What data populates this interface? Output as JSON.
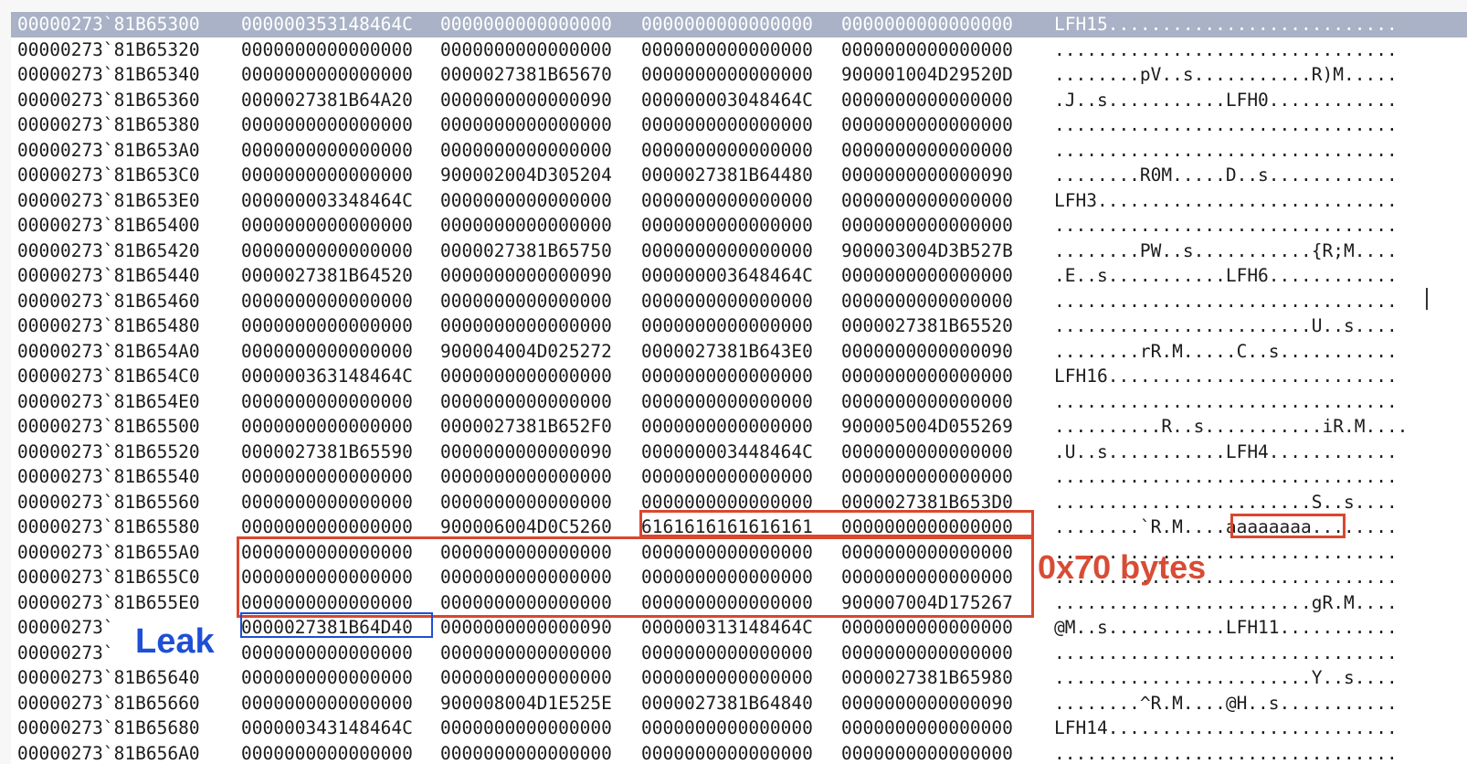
{
  "memory_view": {
    "rows": [
      {
        "addr": "00000273`81B65300",
        "q": [
          "000000353148464C",
          "0000000000000000",
          "0000000000000000",
          "0000000000000000"
        ],
        "ascii": "LFH15...........................",
        "selected": true
      },
      {
        "addr": "00000273`81B65320",
        "q": [
          "0000000000000000",
          "0000000000000000",
          "0000000000000000",
          "0000000000000000"
        ],
        "ascii": "................................"
      },
      {
        "addr": "00000273`81B65340",
        "q": [
          "0000000000000000",
          "0000027381B65670",
          "0000000000000000",
          "900001004D29520D"
        ],
        "ascii": "........pV..s...........R)M....."
      },
      {
        "addr": "00000273`81B65360",
        "q": [
          "0000027381B64A20",
          "0000000000000090",
          "000000003048464C",
          "0000000000000000"
        ],
        "ascii": ".J..s...........LFH0............"
      },
      {
        "addr": "00000273`81B65380",
        "q": [
          "0000000000000000",
          "0000000000000000",
          "0000000000000000",
          "0000000000000000"
        ],
        "ascii": "................................"
      },
      {
        "addr": "00000273`81B653A0",
        "q": [
          "0000000000000000",
          "0000000000000000",
          "0000000000000000",
          "0000000000000000"
        ],
        "ascii": "................................"
      },
      {
        "addr": "00000273`81B653C0",
        "q": [
          "0000000000000000",
          "900002004D305204",
          "0000027381B64480",
          "0000000000000090"
        ],
        "ascii": "........R0M.....D..s............"
      },
      {
        "addr": "00000273`81B653E0",
        "q": [
          "000000003348464C",
          "0000000000000000",
          "0000000000000000",
          "0000000000000000"
        ],
        "ascii": "LFH3............................"
      },
      {
        "addr": "00000273`81B65400",
        "q": [
          "0000000000000000",
          "0000000000000000",
          "0000000000000000",
          "0000000000000000"
        ],
        "ascii": "................................"
      },
      {
        "addr": "00000273`81B65420",
        "q": [
          "0000000000000000",
          "0000027381B65750",
          "0000000000000000",
          "900003004D3B527B"
        ],
        "ascii": "........PW..s...........{R;M...."
      },
      {
        "addr": "00000273`81B65440",
        "q": [
          "0000027381B64520",
          "0000000000000090",
          "000000003648464C",
          "0000000000000000"
        ],
        "ascii": ".E..s...........LFH6............"
      },
      {
        "addr": "00000273`81B65460",
        "q": [
          "0000000000000000",
          "0000000000000000",
          "0000000000000000",
          "0000000000000000"
        ],
        "ascii": "................................"
      },
      {
        "addr": "00000273`81B65480",
        "q": [
          "0000000000000000",
          "0000000000000000",
          "0000000000000000",
          "0000027381B65520"
        ],
        "ascii": "........................U..s...."
      },
      {
        "addr": "00000273`81B654A0",
        "q": [
          "0000000000000000",
          "900004004D025272",
          "0000027381B643E0",
          "0000000000000090"
        ],
        "ascii": "........rR.M.....C..s..........."
      },
      {
        "addr": "00000273`81B654C0",
        "q": [
          "000000363148464C",
          "0000000000000000",
          "0000000000000000",
          "0000000000000000"
        ],
        "ascii": "LFH16..........................."
      },
      {
        "addr": "00000273`81B654E0",
        "q": [
          "0000000000000000",
          "0000000000000000",
          "0000000000000000",
          "0000000000000000"
        ],
        "ascii": "................................"
      },
      {
        "addr": "00000273`81B65500",
        "q": [
          "0000000000000000",
          "0000027381B652F0",
          "0000000000000000",
          "900005004D055269"
        ],
        "ascii": "..........R..s...........iR.M...."
      },
      {
        "addr": "00000273`81B65520",
        "q": [
          "0000027381B65590",
          "0000000000000090",
          "000000003448464C",
          "0000000000000000"
        ],
        "ascii": ".U..s...........LFH4............"
      },
      {
        "addr": "00000273`81B65540",
        "q": [
          "0000000000000000",
          "0000000000000000",
          "0000000000000000",
          "0000000000000000"
        ],
        "ascii": "................................"
      },
      {
        "addr": "00000273`81B65560",
        "q": [
          "0000000000000000",
          "0000000000000000",
          "0000000000000000",
          "0000027381B653D0"
        ],
        "ascii": "........................S..s...."
      },
      {
        "addr": "00000273`81B65580",
        "q": [
          "0000000000000000",
          "900006004D0C5260",
          "6161616161616161",
          "0000000000000000"
        ],
        "ascii": "........`R.M....aaaaaaaa........"
      },
      {
        "addr": "00000273`81B655A0",
        "q": [
          "0000000000000000",
          "0000000000000000",
          "0000000000000000",
          "0000000000000000"
        ],
        "ascii": "................................"
      },
      {
        "addr": "00000273`81B655C0",
        "q": [
          "0000000000000000",
          "0000000000000000",
          "0000000000000000",
          "0000000000000000"
        ],
        "ascii": "................................"
      },
      {
        "addr": "00000273`81B655E0",
        "q": [
          "0000000000000000",
          "0000000000000000",
          "0000000000000000",
          "900007004D175267"
        ],
        "ascii": "........................gR.M...."
      },
      {
        "addr": "00000273`",
        "q": [
          "0000027381B64D40",
          "0000000000000090",
          "000000313148464C",
          "0000000000000000"
        ],
        "ascii": "@M..s...........LFH11..........."
      },
      {
        "addr": "00000273`",
        "q": [
          "0000000000000000",
          "0000000000000000",
          "0000000000000000",
          "0000000000000000"
        ],
        "ascii": "................................"
      },
      {
        "addr": "00000273`81B65640",
        "q": [
          "0000000000000000",
          "0000000000000000",
          "0000000000000000",
          "0000027381B65980"
        ],
        "ascii": "........................Y..s...."
      },
      {
        "addr": "00000273`81B65660",
        "q": [
          "0000000000000000",
          "900008004D1E525E",
          "0000027381B64840",
          "0000000000000090"
        ],
        "ascii": "........^R.M....@H..s..........."
      },
      {
        "addr": "00000273`81B65680",
        "q": [
          "000000343148464C",
          "0000000000000000",
          "0000000000000000",
          "0000000000000000"
        ],
        "ascii": "LFH14..........................."
      },
      {
        "addr": "00000273`81B656A0",
        "q": [
          "0000000000000000",
          "0000000000000000",
          "0000000000000000",
          "0000000000000000"
        ],
        "ascii": "................................"
      }
    ]
  },
  "annotations": {
    "leak_label": "Leak",
    "size_label": "0x70 bytes",
    "colors": {
      "red": "#d9472f",
      "blue": "#1f4fd6",
      "selection": "#a9b2c6"
    }
  }
}
